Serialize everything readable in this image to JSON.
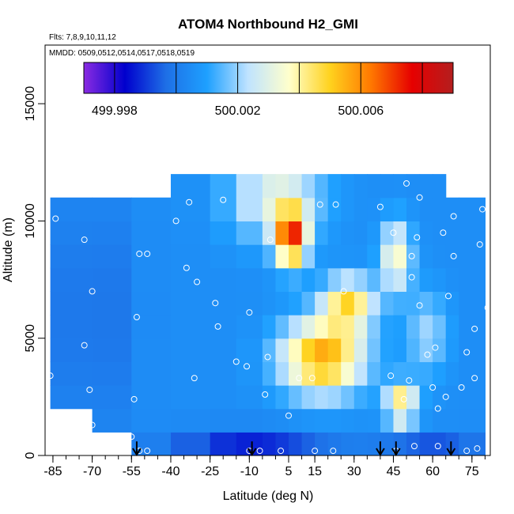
{
  "chart_data": {
    "type": "heatmap",
    "title": "ATOM4 Northbound H2_GMI",
    "annotations": [
      "Flts: 7,8,9,10,11,12",
      "MMDD: 0509,0512,0514,0517,0518,0519"
    ],
    "xlabel": "Latitude (deg N)",
    "ylabel": "Altitude (m)",
    "xlim": [
      -88,
      82
    ],
    "ylim": [
      0,
      17500
    ],
    "x_ticks": [
      -85,
      -70,
      -55,
      -40,
      -25,
      -10,
      5,
      15,
      30,
      45,
      60,
      75
    ],
    "x_tick_labels": [
      "-85",
      "-70",
      "-55",
      "-40",
      "-25",
      "-10",
      "5",
      "15",
      "30",
      "45",
      "60",
      "75"
    ],
    "y_ticks": [
      0,
      5000,
      10000,
      15000
    ],
    "y_tick_labels": [
      "0",
      "5000",
      "10000",
      "15000"
    ],
    "colorbar": {
      "range": [
        499.997,
        500.009
      ],
      "tick_values": [
        499.998,
        500.002,
        500.006
      ],
      "tick_labels": [
        "499.998",
        "500.002",
        "500.006"
      ],
      "colors": [
        "#8a2be2",
        "#0000cd",
        "#1e6fe6",
        "#1ea0ff",
        "#bfe3ff",
        "#ffffcc",
        "#ffd21e",
        "#ff7800",
        "#e60000",
        "#b41e1e"
      ]
    },
    "field_breakpoints": {
      "x": [
        -86,
        -70,
        -55,
        -40,
        -25,
        -15,
        -5,
        0,
        5,
        10,
        15,
        20,
        25,
        30,
        35,
        40,
        45,
        50,
        55,
        60,
        65,
        70,
        80
      ],
      "y": [
        0,
        1000,
        2000,
        3000,
        4000,
        5000,
        6000,
        7000,
        8000,
        9000,
        10000,
        11000,
        12000
      ]
    },
    "arrow_latitudes": [
      -53,
      -9,
      40,
      46,
      67
    ],
    "marker_points": [
      [
        -84,
        10100
      ],
      [
        -73,
        9200
      ],
      [
        -70,
        7000
      ],
      [
        -73,
        4700
      ],
      [
        -71,
        2800
      ],
      [
        -86,
        3400
      ],
      [
        -70,
        1300
      ],
      [
        -52,
        8600
      ],
      [
        -49,
        8600
      ],
      [
        -53,
        5900
      ],
      [
        -54,
        2400
      ],
      [
        -55,
        800
      ],
      [
        -52,
        200
      ],
      [
        -49,
        200
      ],
      [
        -33,
        10800
      ],
      [
        -38,
        10000
      ],
      [
        -34,
        8000
      ],
      [
        -30,
        7400
      ],
      [
        -23,
        6500
      ],
      [
        -22,
        5500
      ],
      [
        -31,
        3300
      ],
      [
        -15,
        4000
      ],
      [
        -11,
        3800
      ],
      [
        -10,
        6100
      ],
      [
        -10,
        200
      ],
      [
        -6,
        200
      ],
      [
        -20,
        10900
      ],
      [
        -2,
        9200
      ],
      [
        -3,
        4200
      ],
      [
        -4,
        2600
      ],
      [
        2,
        200
      ],
      [
        5,
        1700
      ],
      [
        9,
        3300
      ],
      [
        17,
        10700
      ],
      [
        23,
        10700
      ],
      [
        26,
        7000
      ],
      [
        14,
        3300
      ],
      [
        15,
        200
      ],
      [
        22,
        200
      ],
      [
        40,
        10600
      ],
      [
        45,
        9500
      ],
      [
        52,
        8500
      ],
      [
        54,
        9300
      ],
      [
        44,
        3400
      ],
      [
        49,
        2400
      ],
      [
        51,
        3200
      ],
      [
        52,
        7600
      ],
      [
        55,
        6400
      ],
      [
        58,
        4300
      ],
      [
        61,
        4600
      ],
      [
        62,
        2000
      ],
      [
        60,
        2900
      ],
      [
        65,
        2500
      ],
      [
        71,
        2900
      ],
      [
        76,
        3300
      ],
      [
        73,
        4400
      ],
      [
        68,
        10200
      ],
      [
        64,
        9500
      ],
      [
        66,
        6800
      ],
      [
        79,
        10500
      ],
      [
        55,
        11000
      ],
      [
        50,
        11600
      ],
      [
        68,
        8500
      ],
      [
        76,
        5400
      ],
      [
        81,
        6300
      ],
      [
        83,
        9500
      ],
      [
        78,
        9000
      ],
      [
        46,
        200
      ],
      [
        53,
        400
      ],
      [
        62,
        400
      ],
      [
        73,
        200
      ],
      [
        77,
        300
      ]
    ]
  }
}
